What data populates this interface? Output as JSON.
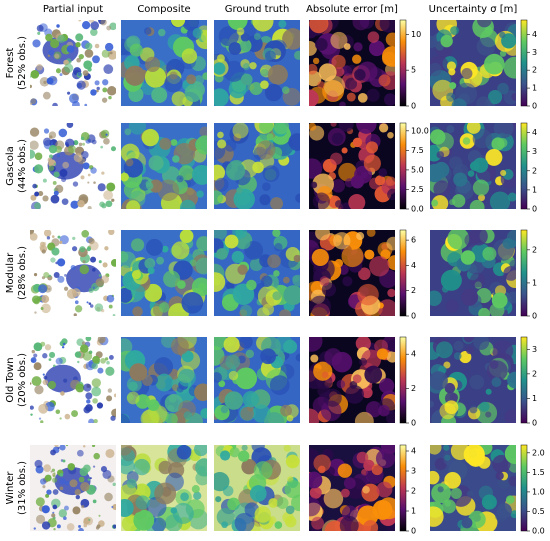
{
  "columns": [
    "Partial input",
    "Composite",
    "Ground truth",
    "Absolute error [m]",
    "Uncertainty σ [m]"
  ],
  "rows": [
    {
      "name": "Forest",
      "obs": "(52% obs.)",
      "error_bar": {
        "lim": [
          0,
          12
        ],
        "ticks": [
          0,
          5,
          10
        ]
      },
      "uncertainty_bar": {
        "lim": [
          0,
          4.8
        ],
        "ticks": [
          0,
          1,
          2,
          3,
          4
        ]
      }
    },
    {
      "name": "Gascola",
      "obs": "(44% obs.)",
      "error_bar": {
        "lim": [
          0,
          11
        ],
        "ticks": [
          {
            "value": 0,
            "label": "0.0"
          },
          {
            "value": 2.5,
            "label": "2.5"
          },
          {
            "value": 5,
            "label": "5.0"
          },
          {
            "value": 7.5,
            "label": "7.5"
          },
          {
            "value": 10,
            "label": "10.0"
          }
        ]
      },
      "uncertainty_bar": {
        "lim": [
          0,
          4.5
        ],
        "ticks": [
          0,
          1,
          2,
          3,
          4
        ]
      }
    },
    {
      "name": "Modular",
      "obs": "(28% obs.)",
      "error_bar": {
        "lim": [
          0,
          6.8
        ],
        "ticks": [
          0,
          2,
          4,
          6
        ]
      },
      "uncertainty_bar": {
        "lim": [
          0,
          2.6
        ],
        "ticks": [
          0,
          1,
          2
        ]
      }
    },
    {
      "name": "Old Town",
      "obs": "(20% obs.)",
      "error_bar": {
        "lim": [
          0,
          5
        ],
        "ticks": [
          0,
          2,
          4
        ]
      },
      "uncertainty_bar": {
        "lim": [
          0,
          3.5
        ],
        "ticks": [
          0,
          1,
          2,
          3
        ]
      }
    },
    {
      "name": "Winter",
      "obs": "(31% obs.)",
      "error_bar": {
        "lim": [
          0,
          4.3
        ],
        "ticks": [
          0,
          1,
          2,
          3,
          4
        ]
      },
      "uncertainty_bar": {
        "lim": [
          0,
          2.2
        ],
        "ticks": [
          {
            "value": 0,
            "label": "0.0"
          },
          {
            "value": 0.5,
            "label": "0.5"
          },
          {
            "value": 1,
            "label": "1.0"
          },
          {
            "value": 1.5,
            "label": "1.5"
          },
          {
            "value": 2,
            "label": "2.0"
          }
        ]
      }
    }
  ]
}
